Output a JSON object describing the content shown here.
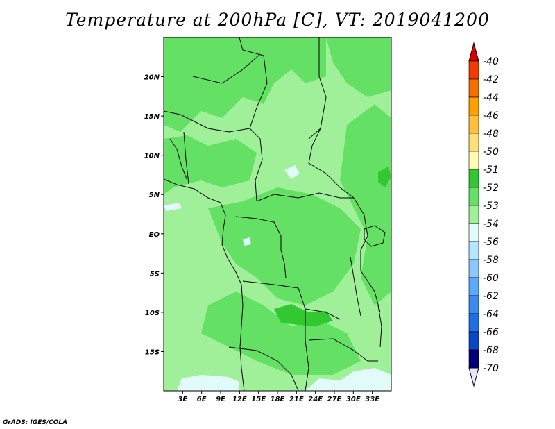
{
  "title": "Temperature at 200hPa [C], VT: 2019041200",
  "credit": "GrADS: IGES/COLA",
  "map": {
    "lon_range": [
      0,
      36
    ],
    "lat_range": [
      -20,
      25
    ],
    "lon_ticks": [
      "3E",
      "6E",
      "9E",
      "12E",
      "15E",
      "18E",
      "21E",
      "24E",
      "27E",
      "30E",
      "33E"
    ],
    "lat_ticks": [
      "20N",
      "15N",
      "10N",
      "5N",
      "EQ",
      "5S",
      "10S",
      "15S"
    ],
    "lon_values": [
      3,
      6,
      9,
      12,
      15,
      18,
      21,
      24,
      27,
      30,
      33
    ],
    "lat_values": [
      20,
      15,
      10,
      5,
      0,
      -5,
      -10,
      -15
    ]
  },
  "colorbar": {
    "labels": [
      "-40",
      "-42",
      "-44",
      "-46",
      "-48",
      "-50",
      "-51",
      "-52",
      "-53",
      "-54",
      "-56",
      "-58",
      "-60",
      "-62",
      "-64",
      "-66",
      "-68",
      "-70"
    ],
    "colors": [
      "#d80000",
      "#f03c00",
      "#f56e00",
      "#ffa000",
      "#ffc03c",
      "#ffe078",
      "#fffab4",
      "#32c832",
      "#64e164",
      "#a0f09a",
      "#e1fafa",
      "#b4e6ff",
      "#8cc8ff",
      "#5aaaff",
      "#3c8cf0",
      "#1e6ee6",
      "#0a46c8",
      "#000078"
    ],
    "top_triangle_color": "#d80000",
    "bottom_triangle_color": "#e6e6fa"
  },
  "field_colors": {
    "level_53": "#64e164",
    "level_54": "#a0f09a",
    "level_52": "#32c832",
    "level_56": "#e1fafa"
  }
}
